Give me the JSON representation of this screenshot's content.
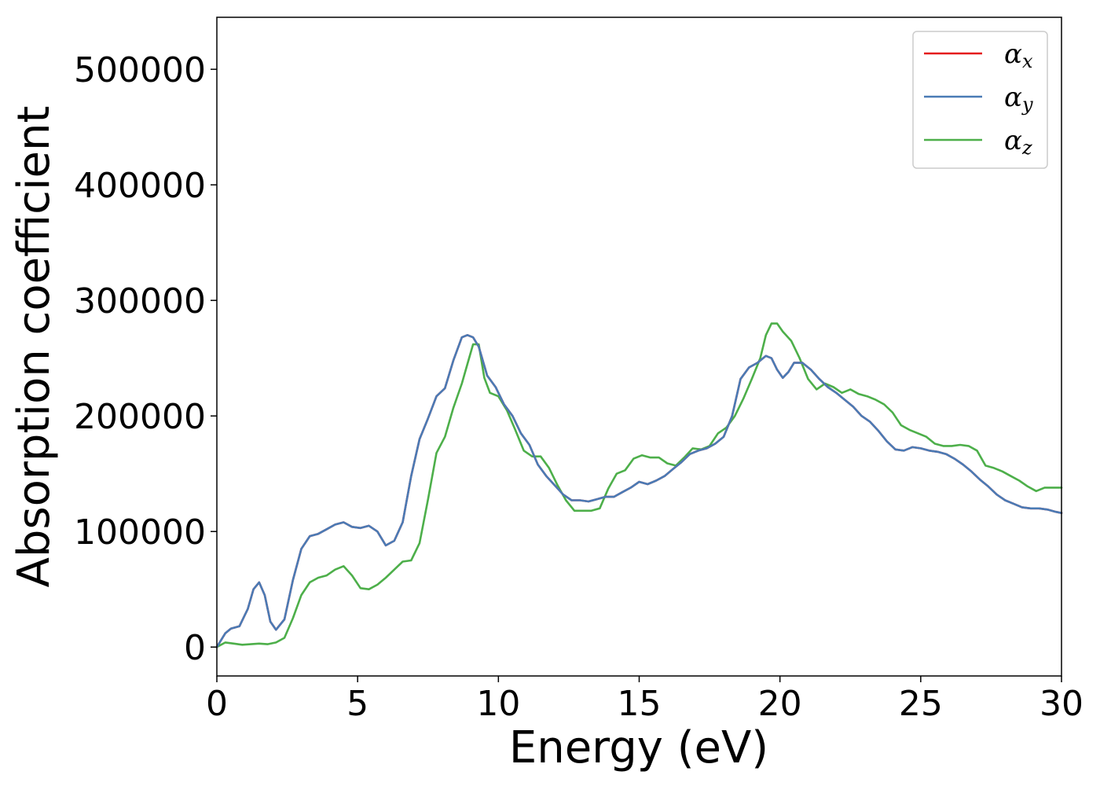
{
  "chart_data": {
    "type": "line",
    "title": "",
    "xlabel": "Energy (eV)",
    "ylabel": "Absorption coefficient",
    "xlim": [
      0,
      30
    ],
    "ylim": [
      -25000,
      545000
    ],
    "xticks": [
      0,
      5,
      10,
      15,
      20,
      25,
      30
    ],
    "yticks": [
      0,
      100000,
      200000,
      300000,
      400000,
      500000
    ],
    "xtick_labels": [
      "0",
      "5",
      "10",
      "15",
      "20",
      "25",
      "30"
    ],
    "ytick_labels": [
      "0",
      "100000",
      "200000",
      "300000",
      "400000",
      "500000"
    ],
    "grid": false,
    "legend_position": "top-right",
    "series": [
      {
        "name": "α_x",
        "label_base": "α",
        "label_sub": "x",
        "color": "#e41a1c",
        "x": [
          0,
          0.3,
          0.5,
          0.8,
          1.1,
          1.3,
          1.5,
          1.7,
          1.9,
          2.1,
          2.4,
          2.7,
          3.0,
          3.3,
          3.6,
          3.9,
          4.2,
          4.5,
          4.8,
          5.1,
          5.4,
          5.7,
          6.0,
          6.3,
          6.6,
          6.9,
          7.2,
          7.5,
          7.8,
          8.1,
          8.4,
          8.7,
          8.9,
          9.1,
          9.3,
          9.6,
          9.9,
          10.2,
          10.5,
          10.8,
          11.1,
          11.4,
          11.7,
          12.0,
          12.3,
          12.6,
          12.9,
          13.2,
          13.5,
          13.8,
          14.1,
          14.4,
          14.7,
          15.0,
          15.3,
          15.6,
          15.9,
          16.2,
          16.5,
          16.8,
          17.1,
          17.4,
          17.7,
          18.0,
          18.3,
          18.6,
          18.9,
          19.2,
          19.5,
          19.7,
          19.9,
          20.1,
          20.3,
          20.5,
          20.8,
          21.1,
          21.4,
          21.7,
          22.0,
          22.3,
          22.6,
          22.9,
          23.2,
          23.5,
          23.8,
          24.1,
          24.4,
          24.7,
          25.0,
          25.3,
          25.6,
          25.9,
          26.2,
          26.5,
          26.8,
          27.1,
          27.4,
          27.7,
          28.0,
          28.3,
          28.6,
          28.9,
          29.2,
          29.5,
          29.8,
          30.0
        ],
        "y": [
          0,
          12000,
          16000,
          18000,
          33000,
          50000,
          56000,
          45000,
          22000,
          15000,
          24000,
          58000,
          85000,
          96000,
          98000,
          102000,
          106000,
          108000,
          104000,
          103000,
          105000,
          100000,
          88000,
          92000,
          108000,
          148000,
          180000,
          198000,
          217000,
          224000,
          248000,
          268000,
          270000,
          268000,
          260000,
          235000,
          225000,
          210000,
          200000,
          185000,
          175000,
          158000,
          148000,
          140000,
          132000,
          127000,
          127000,
          126000,
          128000,
          130000,
          130000,
          134000,
          138000,
          143000,
          141000,
          144000,
          148000,
          154000,
          160000,
          167000,
          170000,
          172000,
          176000,
          182000,
          200000,
          232000,
          242000,
          246000,
          252000,
          250000,
          240000,
          233000,
          238000,
          246000,
          246000,
          240000,
          232000,
          225000,
          220000,
          214000,
          208000,
          200000,
          195000,
          187000,
          178000,
          171000,
          170000,
          173000,
          172000,
          170000,
          169000,
          167000,
          163000,
          158000,
          152000,
          145000,
          139000,
          132000,
          127000,
          124000,
          121000,
          120000,
          120000,
          119000,
          117000,
          116000
        ]
      },
      {
        "name": "α_y",
        "label_base": "α",
        "label_sub": "y",
        "color": "#4a7bb5",
        "x": [
          0,
          0.3,
          0.5,
          0.8,
          1.1,
          1.3,
          1.5,
          1.7,
          1.9,
          2.1,
          2.4,
          2.7,
          3.0,
          3.3,
          3.6,
          3.9,
          4.2,
          4.5,
          4.8,
          5.1,
          5.4,
          5.7,
          6.0,
          6.3,
          6.6,
          6.9,
          7.2,
          7.5,
          7.8,
          8.1,
          8.4,
          8.7,
          8.9,
          9.1,
          9.3,
          9.6,
          9.9,
          10.2,
          10.5,
          10.8,
          11.1,
          11.4,
          11.7,
          12.0,
          12.3,
          12.6,
          12.9,
          13.2,
          13.5,
          13.8,
          14.1,
          14.4,
          14.7,
          15.0,
          15.3,
          15.6,
          15.9,
          16.2,
          16.5,
          16.8,
          17.1,
          17.4,
          17.7,
          18.0,
          18.3,
          18.6,
          18.9,
          19.2,
          19.5,
          19.7,
          19.9,
          20.1,
          20.3,
          20.5,
          20.8,
          21.1,
          21.4,
          21.7,
          22.0,
          22.3,
          22.6,
          22.9,
          23.2,
          23.5,
          23.8,
          24.1,
          24.4,
          24.7,
          25.0,
          25.3,
          25.6,
          25.9,
          26.2,
          26.5,
          26.8,
          27.1,
          27.4,
          27.7,
          28.0,
          28.3,
          28.6,
          28.9,
          29.2,
          29.5,
          29.8,
          30.0
        ],
        "y": [
          0,
          12000,
          16000,
          18000,
          33000,
          50000,
          56000,
          45000,
          22000,
          15000,
          24000,
          58000,
          85000,
          96000,
          98000,
          102000,
          106000,
          108000,
          104000,
          103000,
          105000,
          100000,
          88000,
          92000,
          108000,
          148000,
          180000,
          198000,
          217000,
          224000,
          248000,
          268000,
          270000,
          268000,
          260000,
          235000,
          225000,
          210000,
          200000,
          185000,
          175000,
          158000,
          148000,
          140000,
          132000,
          127000,
          127000,
          126000,
          128000,
          130000,
          130000,
          134000,
          138000,
          143000,
          141000,
          144000,
          148000,
          154000,
          160000,
          167000,
          170000,
          172000,
          176000,
          182000,
          200000,
          232000,
          242000,
          246000,
          252000,
          250000,
          240000,
          233000,
          238000,
          246000,
          246000,
          240000,
          232000,
          225000,
          220000,
          214000,
          208000,
          200000,
          195000,
          187000,
          178000,
          171000,
          170000,
          173000,
          172000,
          170000,
          169000,
          167000,
          163000,
          158000,
          152000,
          145000,
          139000,
          132000,
          127000,
          124000,
          121000,
          120000,
          120000,
          119000,
          117000,
          116000
        ]
      },
      {
        "name": "α_z",
        "label_base": "α",
        "label_sub": "z",
        "color": "#4daf4a",
        "x": [
          0,
          0.3,
          0.6,
          0.9,
          1.2,
          1.5,
          1.8,
          2.1,
          2.4,
          2.7,
          3.0,
          3.3,
          3.6,
          3.9,
          4.2,
          4.5,
          4.8,
          5.1,
          5.4,
          5.7,
          6.0,
          6.3,
          6.6,
          6.9,
          7.2,
          7.5,
          7.8,
          8.1,
          8.4,
          8.7,
          8.9,
          9.1,
          9.3,
          9.5,
          9.7,
          10.0,
          10.3,
          10.6,
          10.9,
          11.2,
          11.5,
          11.8,
          12.1,
          12.4,
          12.7,
          13.0,
          13.3,
          13.6,
          13.9,
          14.2,
          14.5,
          14.8,
          15.1,
          15.4,
          15.7,
          16.0,
          16.3,
          16.6,
          16.9,
          17.2,
          17.5,
          17.8,
          18.1,
          18.4,
          18.7,
          19.0,
          19.3,
          19.5,
          19.7,
          19.9,
          20.1,
          20.4,
          20.7,
          21.0,
          21.3,
          21.6,
          21.9,
          22.2,
          22.5,
          22.8,
          23.1,
          23.4,
          23.7,
          24.0,
          24.3,
          24.6,
          24.9,
          25.2,
          25.5,
          25.8,
          26.1,
          26.4,
          26.7,
          27.0,
          27.3,
          27.6,
          27.9,
          28.2,
          28.5,
          28.8,
          29.1,
          29.4,
          29.7,
          30.0
        ],
        "y": [
          0,
          4000,
          3000,
          2000,
          2500,
          3000,
          2500,
          4000,
          8000,
          25000,
          45000,
          56000,
          60000,
          62000,
          67000,
          70000,
          62000,
          51000,
          50000,
          54000,
          60000,
          67000,
          74000,
          75000,
          90000,
          128000,
          168000,
          182000,
          207000,
          228000,
          245000,
          262000,
          262000,
          233000,
          220000,
          217000,
          205000,
          188000,
          170000,
          165000,
          165000,
          155000,
          140000,
          127000,
          118000,
          118000,
          118000,
          120000,
          137000,
          150000,
          153000,
          163000,
          166000,
          164000,
          164000,
          159000,
          157000,
          164000,
          172000,
          171000,
          174000,
          185000,
          190000,
          200000,
          215000,
          232000,
          250000,
          270000,
          280000,
          280000,
          273000,
          265000,
          250000,
          232000,
          223000,
          228000,
          225000,
          220000,
          223000,
          219000,
          217000,
          214000,
          210000,
          203000,
          192000,
          188000,
          185000,
          182000,
          176000,
          174000,
          174000,
          175000,
          174000,
          170000,
          157000,
          155000,
          152000,
          148000,
          144000,
          139000,
          135000,
          138000,
          138000,
          138000
        ]
      }
    ]
  }
}
